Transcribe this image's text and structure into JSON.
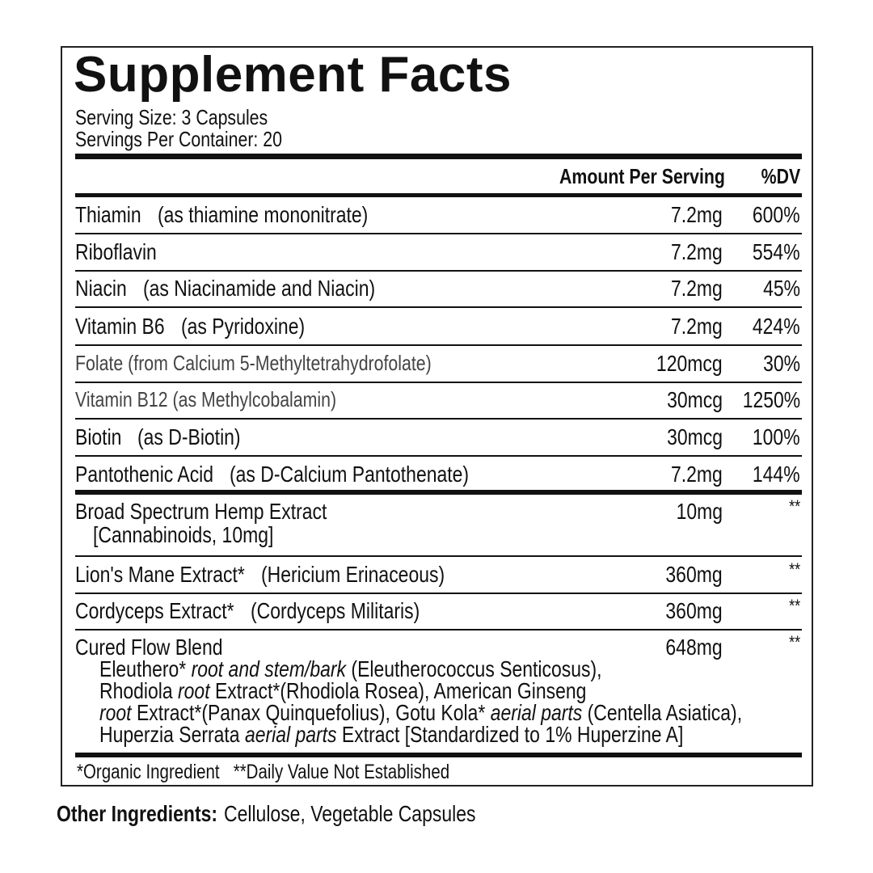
{
  "title": "Supplement Facts",
  "serving_size": "Serving Size: 3 Capsules",
  "servings_per_container": "Servings Per Container: 20",
  "header": {
    "amount": "Amount Per Serving",
    "dv": "%DV"
  },
  "rows": [
    {
      "name": "Thiamin",
      "note": "(as thiamine mononitrate)",
      "amount": "7.2mg",
      "dv": "600%"
    },
    {
      "name": "Riboflavin",
      "amount": "7.2mg",
      "dv": "554%"
    },
    {
      "name": "Niacin",
      "note": "(as Niacinamide and Niacin)",
      "amount": "7.2mg",
      "dv": "45%"
    },
    {
      "name": "Vitamin B6",
      "note": "(as Pyridoxine)",
      "amount": "7.2mg",
      "dv": "424%"
    },
    {
      "name": "Folate (from Calcium 5-Methyltetrahydrofolate)",
      "amount": "120mcg",
      "dv": "30%"
    },
    {
      "name": "Vitamin B12 (as Methylcobalamin)",
      "amount": "30mcg",
      "dv": "1250%"
    },
    {
      "name": "Biotin",
      "note": "(as D-Biotin)",
      "amount": "30mcg",
      "dv": "100%"
    },
    {
      "name": "Pantothenic Acid",
      "note": "(as D-Calcium Pantothenate)",
      "amount": "7.2mg",
      "dv": "144%"
    }
  ],
  "extracts": [
    {
      "name": "Broad Spectrum Hemp Extract",
      "sub": "[Cannabinoids, 10mg]",
      "amount": "10mg",
      "dv": "**"
    },
    {
      "name": "Lion's Mane Extract*",
      "note": "(Hericium Erinaceous)",
      "amount": "360mg",
      "dv": "**"
    },
    {
      "name": "Cordyceps Extract*",
      "note": "(Cordyceps Militaris)",
      "amount": "360mg",
      "dv": "**"
    }
  ],
  "blend": {
    "name": "Cured Flow Blend",
    "amount": "648mg",
    "dv": "**",
    "lines": [
      [
        "Eleuthero* ",
        {
          "text": "root and stem/bark",
          "italic": true
        },
        " (Eleutherococcus Senticosus),"
      ],
      [
        "Rhodiola ",
        {
          "text": "root",
          "italic": true
        },
        " Extract*(Rhodiola Rosea), American Ginseng"
      ],
      [
        {
          "text": "root",
          "italic": true
        },
        " Extract*(Panax Quinquefolius), Gotu Kola* ",
        {
          "text": "aerial parts",
          "italic": true
        },
        " (Centella Asiatica),"
      ],
      [
        "Huperzia Serrata ",
        {
          "text": "aerial parts",
          "italic": true
        },
        " Extract [Standardized to 1% Huperzine A]"
      ]
    ]
  },
  "footnote": "*Organic Ingredient   **Daily Value Not Established",
  "other_ingredients": {
    "label": "Other Ingredients:",
    "text": "Cellulose, Vegetable Capsules"
  }
}
